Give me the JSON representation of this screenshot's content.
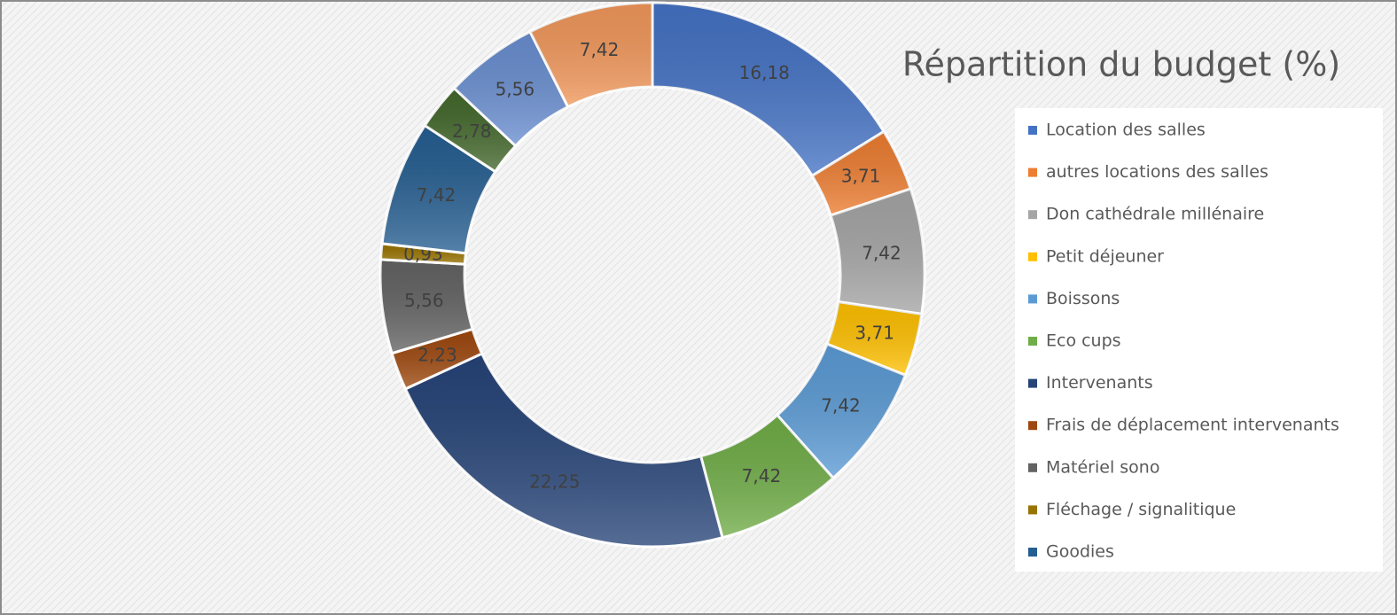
{
  "chart_data": {
    "type": "doughnut",
    "title": "Répartition du budget (%)",
    "categories": [
      "Location des salles",
      "autres locations des salles",
      "Don cathédrale millénaire",
      "Petit déjeuner",
      "Boissons",
      "Eco cups",
      "Intervenants",
      "Frais de déplacement  intervenants",
      "Matériel sono",
      "Fléchage / signalitique",
      "Goodies",
      null,
      null,
      null
    ],
    "values": [
      16.18,
      3.71,
      7.42,
      3.71,
      7.42,
      7.42,
      22.25,
      2.23,
      5.56,
      0.93,
      7.42,
      2.78,
      5.56,
      7.42
    ],
    "value_labels": [
      "16,18",
      "3,71",
      "7,42",
      "3,71",
      "7,42",
      "7,42",
      "22,25",
      "2,23",
      "5,56",
      "0,93",
      "7,42",
      "2,78",
      "5,56",
      "7,42"
    ],
    "colors": [
      "#4472c4",
      "#ed7d31",
      "#a5a5a5",
      "#ffc000",
      "#5b9bd5",
      "#70ad47",
      "#264478",
      "#9e480e",
      "#636363",
      "#997300",
      "#255e91",
      "#43682b",
      "#698ed0",
      "#f1975a"
    ],
    "legend": "right"
  }
}
